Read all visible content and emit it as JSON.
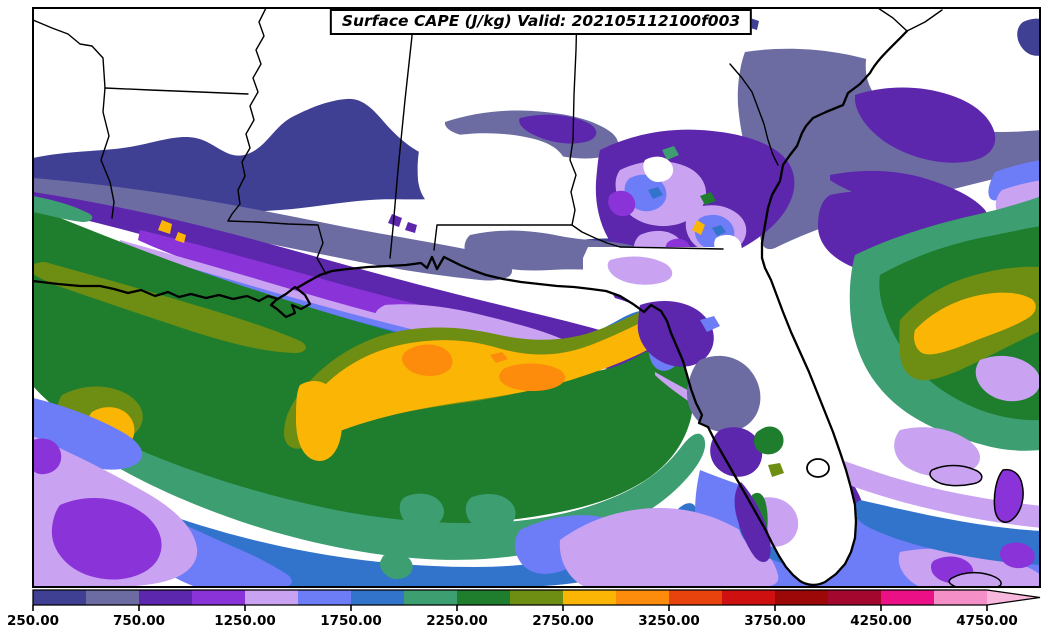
{
  "chart_data": {
    "type": "heatmap",
    "subtype": "filled-contour weather map",
    "title": "Surface CAPE (J/kg) Valid: 202105112100f003",
    "variable": "Surface CAPE",
    "units": "J/kg",
    "valid_time": "202105112100f003",
    "region": "Southeastern United States and Gulf of Mexico (Texas, Louisiana, Mississippi, Alabama, Georgia, Florida, western Atlantic)",
    "colorbar": {
      "levels": [
        250,
        500,
        750,
        1000,
        1250,
        1500,
        1750,
        2000,
        2250,
        2500,
        2750,
        3000,
        3250,
        3500,
        3750,
        4000,
        4250,
        4500,
        4750
      ],
      "tick_labels": [
        "250.00",
        "750.00",
        "1250.00",
        "1750.00",
        "2250.00",
        "2750.00",
        "3250.00",
        "3750.00",
        "4250.00",
        "4750.00"
      ],
      "colors": [
        "#3f3f94",
        "#6c6ca3",
        "#5c26ad",
        "#8a33d9",
        "#c9a2f2",
        "#6d7df7",
        "#3273cc",
        "#3d9e71",
        "#1f7d2e",
        "#6e8d13",
        "#fab505",
        "#fd8c0d",
        "#e8430d",
        "#cf1010",
        "#9c0808",
        "#a4072e",
        "#ec1087",
        "#f48fc7"
      ],
      "extend": "max",
      "extend_color": "#f8b7dc",
      "below_min_color": "#ffffff",
      "orientation": "horizontal",
      "position": "bottom"
    },
    "features": [
      {
        "area": "Gold/orange arc over north-central Gulf south of the Louisiana-Mississippi coast",
        "cape_jkg": "2750-3500, local maxima 3000-3250"
      },
      {
        "area": "Broad green region over Louisiana, east Texas and NW Gulf",
        "cape_jkg": "2250-2750"
      },
      {
        "area": "Purple/slate band inland over central Louisiana, Mississippi, south Alabama, Georgia and NW Atlantic",
        "cape_jkg": "250-1250"
      },
      {
        "area": "Lavender/periwinkle southern Gulf and bottom-left corner",
        "cape_jkg": "1250-1750"
      },
      {
        "area": "Green patch with gold streak in Atlantic east of north Florida",
        "cape_jkg": "2250-3000"
      },
      {
        "area": "White areas (inland Arkansas/Alabama/Tennessee, Florida peninsula interior)",
        "cape_jkg": "< 250"
      }
    ]
  }
}
